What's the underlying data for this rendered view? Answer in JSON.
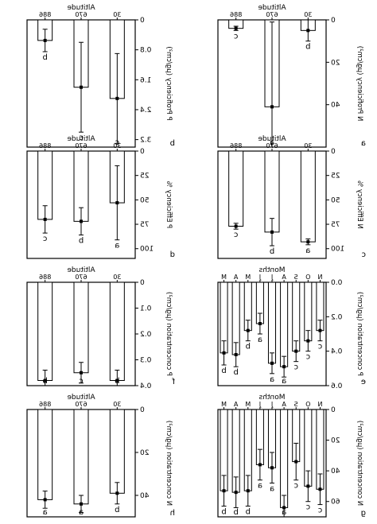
{
  "figure": {
    "note": "Image is mirror-reversed (text appears backwards); recreated via horizontal flip."
  },
  "chart_data": [
    {
      "panel": "a",
      "type": "bar",
      "title": "",
      "xlabel": "Altitude",
      "ylabel": "N Proficiency (μg/cm²)",
      "categories": [
        "30",
        "670",
        "886"
      ],
      "values": [
        5,
        41,
        4
      ],
      "errors": [
        5,
        40,
        1
      ],
      "letters": [
        "b",
        "a",
        "c"
      ],
      "ylim": [
        0,
        60
      ],
      "yticks": [
        0,
        20,
        40
      ],
      "ytick_labels": [
        "0",
        "20",
        "40"
      ],
      "ticks_top": true,
      "grid": false
    },
    {
      "panel": "b",
      "type": "bar",
      "title": "",
      "xlabel": "Altitude",
      "ylabel": "P Proficiency (μg/cm²)",
      "categories": [
        "30",
        "670",
        "886"
      ],
      "values": [
        2.1,
        1.8,
        0.55
      ],
      "errors": [
        1.2,
        1.2,
        0.3
      ],
      "letters": [
        "c",
        "c",
        "b"
      ],
      "ylim": [
        0,
        3.4
      ],
      "yticks": [
        0,
        0.8,
        1.6,
        2.4,
        3.2
      ],
      "ytick_labels": [
        "0",
        "0.8",
        "1.6",
        "2.4",
        "3.2"
      ],
      "ticks_top": true,
      "grid": false
    },
    {
      "panel": "c",
      "type": "bar",
      "title": "",
      "xlabel": "Altitude",
      "ylabel": "N Efficiency %",
      "categories": [
        "30",
        "670",
        "886"
      ],
      "values": [
        93,
        83,
        77
      ],
      "errors": [
        3,
        14,
        3
      ],
      "letters": [
        "a",
        "b",
        "c"
      ],
      "ylim": [
        0,
        110
      ],
      "yticks": [
        0,
        25,
        50,
        75,
        100
      ],
      "ytick_labels": [
        "0",
        "25",
        "50",
        "75",
        "100"
      ],
      "ticks_top": true,
      "grid": false
    },
    {
      "panel": "d",
      "type": "bar",
      "title": "",
      "xlabel": "Altitude",
      "ylabel": "P Efficiency %",
      "categories": [
        "30",
        "670",
        "886"
      ],
      "values": [
        53,
        72,
        70
      ],
      "errors": [
        38,
        14,
        14
      ],
      "letters": [
        "a",
        "b",
        "c"
      ],
      "ylim": [
        0,
        110
      ],
      "yticks": [
        0,
        25,
        50,
        75,
        100
      ],
      "ytick_labels": [
        "0",
        "25",
        "50",
        "75",
        "100"
      ],
      "ticks_top": true,
      "grid": false
    },
    {
      "panel": "e",
      "type": "bar",
      "title": "",
      "xlabel": "Months",
      "ylabel": "P concentration (μg/cm²)",
      "categories": [
        "N",
        "O",
        "S",
        "A",
        "J",
        "J",
        "M",
        "A",
        "M"
      ],
      "values": [
        0.28,
        0.34,
        0.4,
        0.49,
        0.47,
        0.24,
        0.28,
        0.42,
        0.41
      ],
      "errors": [
        0.06,
        0.06,
        0.06,
        0.06,
        0.06,
        0.06,
        0.06,
        0.07,
        0.07
      ],
      "letters": [
        "c",
        "c",
        "c",
        "a",
        "a",
        "a",
        "b",
        "b",
        "b"
      ],
      "ylim": [
        0,
        0.6
      ],
      "yticks": [
        0,
        0.2,
        0.4,
        0.6
      ],
      "ytick_labels": [
        "0.0",
        "0.2",
        "0.4",
        "0.6"
      ],
      "ticks_top": true,
      "grid": false
    },
    {
      "panel": "f",
      "type": "bar",
      "title": "",
      "xlabel": "Altitude",
      "ylabel": "P concentration (μg/cm²)",
      "categories": [
        "30",
        "670",
        "886"
      ],
      "values": [
        0.38,
        0.35,
        0.38
      ],
      "errors": [
        0.04,
        0.04,
        0.04
      ],
      "letters": [
        "b",
        "c",
        "b"
      ],
      "ylim": [
        0,
        0.4
      ],
      "yticks": [
        0,
        0.1,
        0.2,
        0.3,
        0.4
      ],
      "ytick_labels": [
        "0",
        "0.1",
        "0.2",
        "0.3",
        "0.4"
      ],
      "ticks_top": true,
      "grid": false
    },
    {
      "panel": "g",
      "type": "bar",
      "title": "",
      "xlabel": "Months",
      "ylabel": "N concentration (μg/cm²)",
      "categories": [
        "N",
        "O",
        "S",
        "A",
        "J",
        "J",
        "M",
        "A",
        "M"
      ],
      "values": [
        52,
        50,
        34,
        64,
        38,
        36,
        53,
        54,
        53
      ],
      "errors": [
        10,
        10,
        12,
        8,
        10,
        10,
        10,
        10,
        10
      ],
      "letters": [
        "c",
        "c",
        "c",
        "a",
        "a",
        "a",
        "b",
        "b",
        "b"
      ],
      "ylim": [
        0,
        70
      ],
      "yticks": [
        0,
        20,
        40,
        60
      ],
      "ytick_labels": [
        "0",
        "20",
        "40",
        "60"
      ],
      "ticks_top": true,
      "grid": false
    },
    {
      "panel": "h",
      "type": "bar",
      "title": "",
      "xlabel": "Altitude",
      "ylabel": "N concentration (μg/cm²)",
      "categories": [
        "30",
        "670",
        "886"
      ],
      "values": [
        39,
        44,
        42
      ],
      "errors": [
        5,
        4,
        4
      ],
      "letters": [
        "b",
        "a",
        "a"
      ],
      "ylim": [
        0,
        50
      ],
      "yticks": [
        0,
        20,
        40
      ],
      "ytick_labels": [
        "0",
        "20",
        "40"
      ],
      "ticks_top": true,
      "grid": false
    }
  ],
  "panel_labels": [
    "a",
    "b",
    "c",
    "d",
    "e",
    "f",
    "g",
    "h"
  ]
}
